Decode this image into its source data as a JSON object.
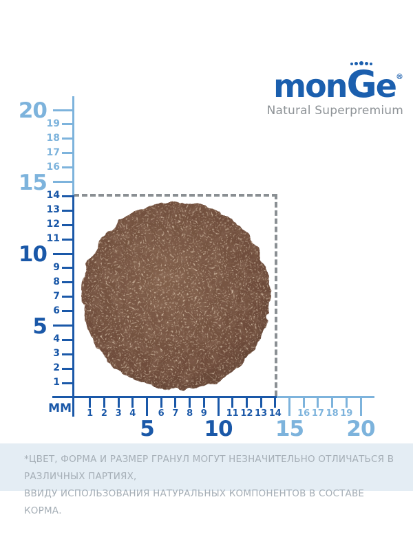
{
  "colors": {
    "dark_blue": "#1a58a8",
    "light_blue": "#7db3dc",
    "logo_blue": "#1b5fae",
    "tagline_gray": "#8d9296",
    "dash_gray": "#8a8f93",
    "note_bg": "#e4edf4",
    "note_text": "#a5aeb6",
    "kibble_center": "#82604b",
    "kibble_edge": "#5e4132"
  },
  "logo": {
    "prefix": "mon",
    "g": "G",
    "suffix": "e",
    "registered": "®",
    "tagline": "Natural Superpremium"
  },
  "ruler": {
    "unit_label": "MM",
    "max_mm": 20,
    "boundary_mm": 14,
    "x_axis": {
      "minor_labels": [
        1,
        2,
        3,
        4,
        6,
        7,
        8,
        9,
        11,
        12,
        13,
        14,
        16,
        17,
        18,
        19
      ],
      "major_labels": [
        5,
        10,
        15,
        20
      ]
    },
    "y_axis": {
      "minor_labels": [
        1,
        2,
        3,
        4,
        6,
        7,
        8,
        9,
        11,
        12,
        13,
        14,
        16,
        17,
        18,
        19
      ],
      "major_labels": [
        5,
        10,
        15,
        20
      ]
    }
  },
  "granule": {
    "marked_size_mm": 14
  },
  "note": {
    "line1": "*ЦВЕТ, ФОРМА И РАЗМЕР ГРАНУЛ МОГУТ НЕЗНАЧИТЕЛЬНО ОТЛИЧАТЬСЯ В РАЗЛИЧНЫХ ПАРТИЯХ,",
    "line2": "ВВИДУ ИСПОЛЬЗОВАНИЯ НАТУРАЛЬНЫХ КОМПОНЕНТОВ В СОСТАВЕ КОРМА."
  }
}
